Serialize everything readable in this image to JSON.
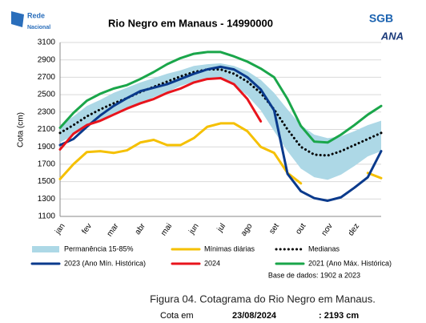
{
  "logos": {
    "left_top": "Rede",
    "left_bottom": "Nacional",
    "right_top": "SGB",
    "right_bottom": "ANA"
  },
  "chart_data": {
    "type": "line",
    "title": "Rio Negro em Manaus - 14990000",
    "y_label": "Cota (cm)",
    "categories": [
      "jan",
      null,
      "fev",
      null,
      "mar",
      null,
      "abr",
      null,
      "mai",
      null,
      "jun",
      null,
      "jul",
      null,
      "ago",
      null,
      "set",
      null,
      "out",
      null,
      "nov",
      null,
      "dez",
      null,
      null
    ],
    "ylim": [
      1100,
      3100
    ],
    "yticks": [
      1100,
      1300,
      1500,
      1700,
      1900,
      2100,
      2300,
      2500,
      2700,
      2900,
      3100
    ],
    "grid": true,
    "series": [
      {
        "name": "Permanência 15-85%",
        "color": "#add8e6",
        "kind": "band",
        "low": [
          1950,
          2030,
          2130,
          2200,
          2270,
          2330,
          2400,
          2470,
          2530,
          2600,
          2650,
          2690,
          2690,
          2610,
          2490,
          2320,
          2080,
          1850,
          1650,
          1550,
          1520,
          1580,
          1680,
          1790,
          1850
        ],
        "high": [
          2150,
          2250,
          2370,
          2440,
          2520,
          2580,
          2640,
          2690,
          2740,
          2780,
          2830,
          2850,
          2860,
          2830,
          2770,
          2670,
          2520,
          2330,
          2150,
          2040,
          2000,
          2020,
          2080,
          2150,
          2200
        ]
      },
      {
        "name": "Mínimas diárias",
        "color": "#f5c000",
        "kind": "line",
        "values": [
          1530,
          1700,
          1840,
          1850,
          1830,
          1860,
          1950,
          1980,
          1920,
          1920,
          2000,
          2130,
          2170,
          2170,
          2080,
          1900,
          1830,
          1600,
          1480,
          null,
          null,
          null,
          null,
          1600,
          1540
        ]
      },
      {
        "name": "Medianas",
        "color": "#000000",
        "kind": "dotted",
        "values": [
          2060,
          2150,
          2250,
          2330,
          2400,
          2460,
          2530,
          2590,
          2650,
          2710,
          2760,
          2790,
          2790,
          2740,
          2650,
          2520,
          2330,
          2100,
          1900,
          1810,
          1800,
          1850,
          1920,
          1990,
          2060
        ]
      },
      {
        "name": "2023 (Ano Mín. Histórica)",
        "color": "#0a3a8c",
        "kind": "line",
        "values": [
          1920,
          1990,
          2130,
          2260,
          2370,
          2460,
          2540,
          2580,
          2620,
          2680,
          2740,
          2790,
          2820,
          2790,
          2700,
          2560,
          2320,
          1590,
          1390,
          1310,
          1280,
          1320,
          1430,
          1550,
          1850
        ]
      },
      {
        "name": "2024",
        "color": "#e8141c",
        "kind": "line",
        "values": [
          1870,
          2050,
          2150,
          2200,
          2270,
          2340,
          2400,
          2450,
          2520,
          2570,
          2640,
          2680,
          2690,
          2620,
          2450,
          2193,
          null,
          null,
          null,
          null,
          null,
          null,
          null,
          null,
          null
        ]
      },
      {
        "name": "2021 (Ano Máx. Histórica)",
        "color": "#1aa64a",
        "kind": "line",
        "values": [
          2120,
          2290,
          2430,
          2510,
          2570,
          2610,
          2680,
          2760,
          2850,
          2920,
          2970,
          2990,
          2990,
          2940,
          2880,
          2800,
          2700,
          2450,
          2140,
          1960,
          1950,
          2040,
          2150,
          2270,
          2370
        ]
      }
    ],
    "source": "Base de dados: 1902 a 2023"
  },
  "caption": {
    "figure": "Figura 04. Cotagrama do Rio Negro em Manaus.",
    "label": "Cota em",
    "date": "23/08/2024",
    "value": ": 2193 cm"
  }
}
